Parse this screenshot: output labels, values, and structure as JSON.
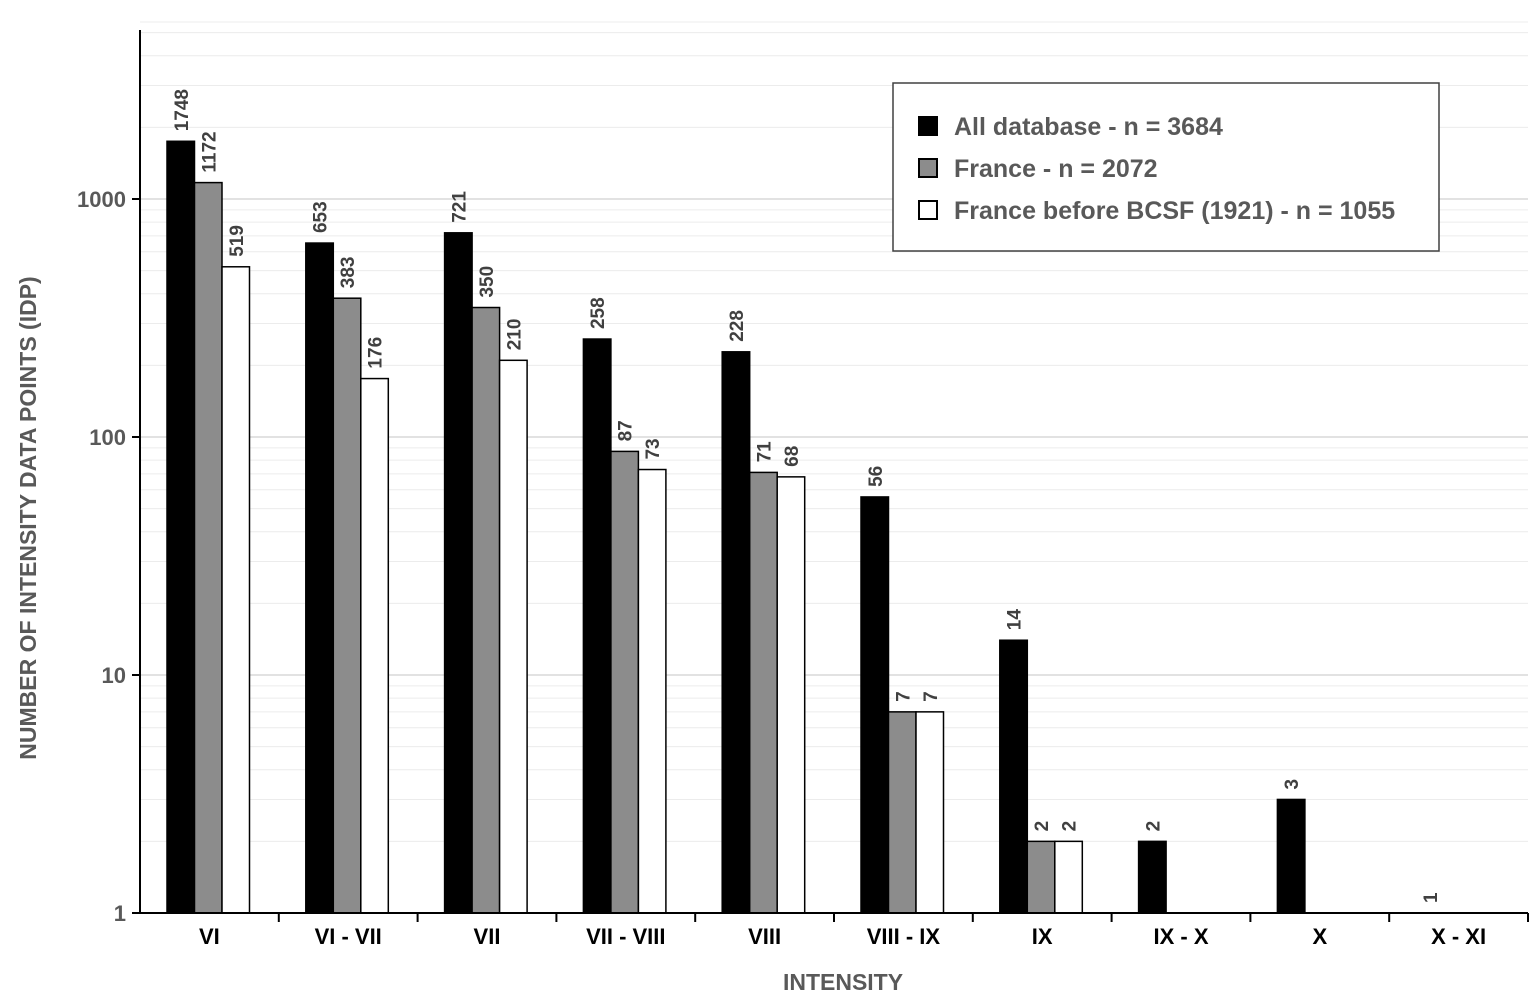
{
  "chart_data": {
    "type": "bar",
    "scale": "log",
    "ylim": [
      1,
      5000
    ],
    "grid": true,
    "legend_position": "top-right",
    "xlabel": "INTENSITY",
    "ylabel": "NUMBER OF INTENSITY DATA POINTS (IDP)",
    "y_ticks": [
      "1",
      "10",
      "100",
      "1000"
    ],
    "categories": [
      "VI",
      "VI - VII",
      "VII",
      "VII - VIII",
      "VIII",
      "VIII - IX",
      "IX",
      "IX - X",
      "X",
      "X - XI"
    ],
    "series": [
      {
        "name": "All database - n = 3684",
        "color": "#000000",
        "values": [
          1748,
          653,
          721,
          258,
          228,
          56,
          14,
          2,
          3,
          1
        ],
        "labels": [
          "1748",
          "653",
          "721",
          "258",
          "228",
          "56",
          "14",
          "2",
          "3",
          "1"
        ]
      },
      {
        "name": "France - n = 2072",
        "color": "#8c8c8c",
        "values": [
          1172,
          383,
          350,
          87,
          71,
          7,
          2,
          null,
          null,
          null
        ],
        "labels": [
          "1172",
          "383",
          "350",
          "87",
          "71",
          "7",
          "2",
          "",
          "",
          ""
        ]
      },
      {
        "name": "France before BCSF (1921) - n = 1055",
        "color": "#ffffff",
        "values": [
          519,
          176,
          210,
          73,
          68,
          7,
          2,
          null,
          null,
          null
        ],
        "labels": [
          "519",
          "176",
          "210",
          "73",
          "68",
          "7",
          "2",
          "",
          "",
          ""
        ]
      }
    ]
  }
}
